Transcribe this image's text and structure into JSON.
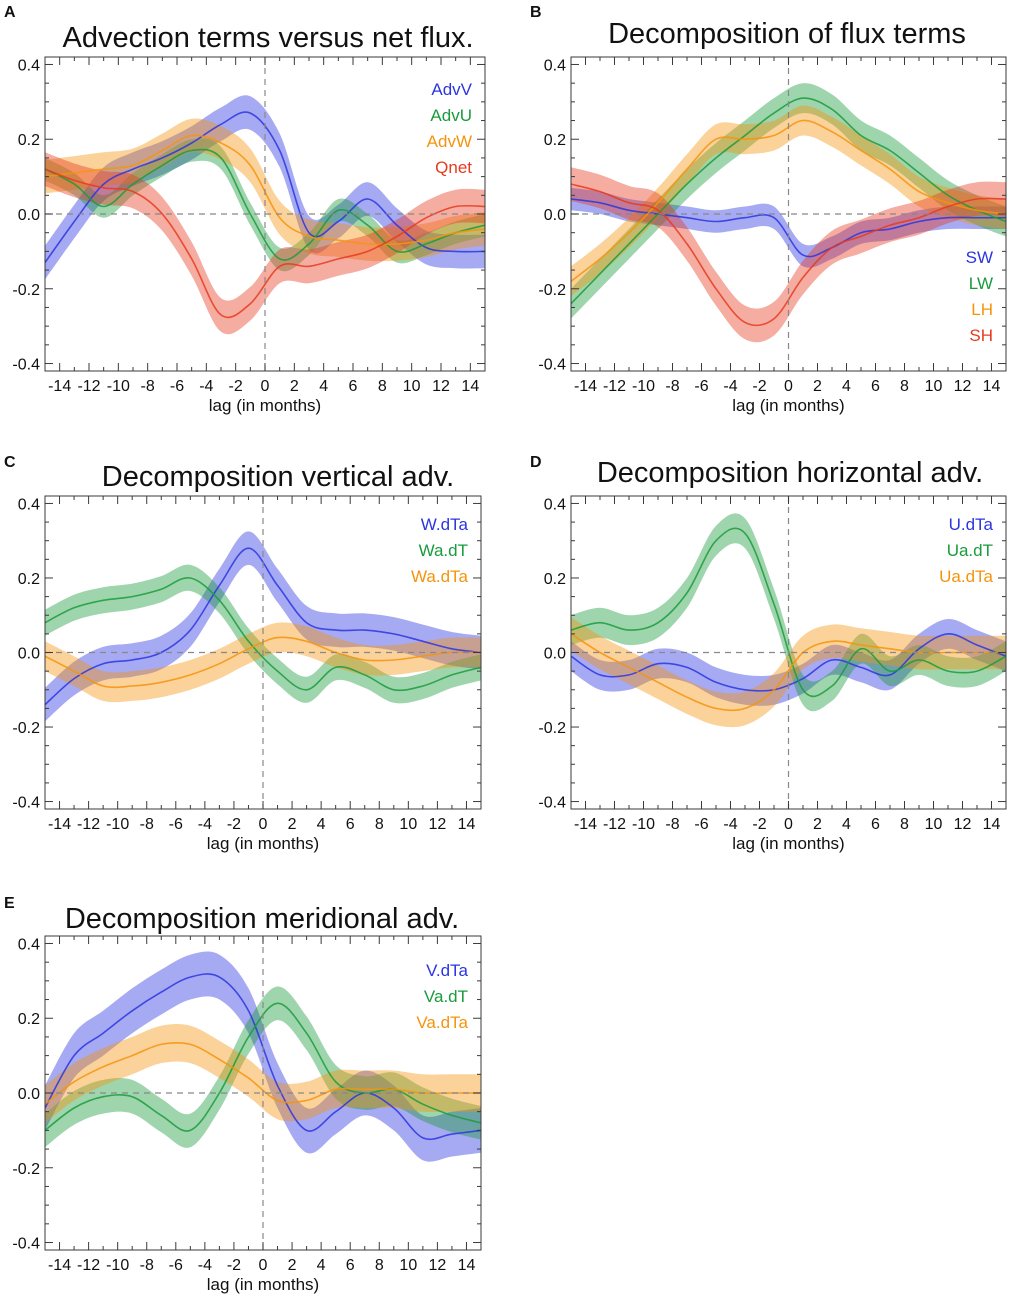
{
  "chart_data": [
    {
      "panel": "A",
      "type": "line",
      "title": "Advection terms versus net flux.",
      "xlabel": "lag (in months)",
      "ylabel": "",
      "xlim": [
        -15,
        15
      ],
      "ylim": [
        -0.42,
        0.42
      ],
      "x_ticks": [
        -14,
        -12,
        -10,
        -8,
        -6,
        -4,
        -2,
        0,
        2,
        4,
        6,
        8,
        10,
        12,
        14
      ],
      "x_tick_labels": [
        "-14",
        "-12",
        "-10",
        "-8",
        "-6",
        "-4",
        "-2",
        "0",
        "2",
        "4",
        "6",
        "8",
        "10",
        "12",
        "14"
      ],
      "y_ticks": [
        -0.4,
        -0.2,
        0.0,
        0.2,
        0.4
      ],
      "y_tick_labels": [
        "-0.4",
        "-0.2",
        "0.0",
        "0.2",
        "0.4"
      ],
      "legend_position": "top-right",
      "x": [
        -15,
        -13,
        -11,
        -9,
        -7,
        -5,
        -3,
        -1,
        1,
        3,
        5,
        7,
        9,
        11,
        13,
        15
      ],
      "series": [
        {
          "name": "AdvV",
          "color": "#2b35e0",
          "band": 0.045,
          "values": [
            -0.13,
            -0.02,
            0.08,
            0.12,
            0.15,
            0.19,
            0.24,
            0.27,
            0.17,
            -0.05,
            -0.02,
            0.04,
            -0.03,
            -0.09,
            -0.1,
            -0.1
          ]
        },
        {
          "name": "AdvU",
          "color": "#1a9b3c",
          "band": 0.03,
          "values": [
            0.12,
            0.08,
            0.02,
            0.08,
            0.13,
            0.17,
            0.15,
            0.0,
            -0.12,
            -0.08,
            0.01,
            -0.03,
            -0.1,
            -0.08,
            -0.05,
            -0.03
          ]
        },
        {
          "name": "AdvW",
          "color": "#f5940c",
          "band": 0.045,
          "values": [
            0.1,
            0.11,
            0.12,
            0.13,
            0.17,
            0.21,
            0.19,
            0.13,
            -0.01,
            -0.06,
            -0.07,
            -0.08,
            -0.08,
            -0.07,
            -0.05,
            -0.04
          ]
        },
        {
          "name": "Qnet",
          "color": "#e83a1e",
          "band": 0.045,
          "values": [
            0.12,
            0.09,
            0.07,
            0.06,
            0.0,
            -0.12,
            -0.27,
            -0.24,
            -0.14,
            -0.14,
            -0.12,
            -0.1,
            -0.06,
            -0.01,
            0.02,
            0.02
          ]
        }
      ]
    },
    {
      "panel": "B",
      "type": "line",
      "title": "Decomposition of flux terms",
      "xlabel": "lag (in months)",
      "ylabel": "",
      "xlim": [
        -15,
        15
      ],
      "ylim": [
        -0.42,
        0.42
      ],
      "x_ticks": [
        -14,
        -12,
        -10,
        -8,
        -6,
        -4,
        -2,
        0,
        2,
        4,
        6,
        8,
        10,
        12,
        14
      ],
      "x_tick_labels": [
        "-14",
        "-12",
        "-10",
        "-8",
        "-6",
        "-4",
        "-2",
        "0",
        "2",
        "4",
        "6",
        "8",
        "10",
        "12",
        "14"
      ],
      "y_ticks": [
        -0.4,
        -0.2,
        0.0,
        0.2,
        0.4
      ],
      "y_tick_labels": [
        "-0.4",
        "-0.2",
        "0.0",
        "0.2",
        "0.4"
      ],
      "legend_position": "bottom-right",
      "x": [
        -15,
        -13,
        -11,
        -9,
        -7,
        -5,
        -3,
        -1,
        1,
        3,
        5,
        7,
        9,
        11,
        13,
        15
      ],
      "series": [
        {
          "name": "SW",
          "color": "#2b35e0",
          "band": 0.03,
          "values": [
            0.04,
            0.03,
            0.01,
            0.0,
            -0.01,
            -0.02,
            -0.01,
            -0.01,
            -0.11,
            -0.09,
            -0.05,
            -0.04,
            -0.02,
            -0.01,
            -0.01,
            -0.01
          ]
        },
        {
          "name": "LW",
          "color": "#1a9b3c",
          "band": 0.04,
          "values": [
            -0.24,
            -0.16,
            -0.08,
            0.0,
            0.08,
            0.15,
            0.21,
            0.27,
            0.31,
            0.28,
            0.21,
            0.17,
            0.11,
            0.05,
            0.01,
            -0.02
          ]
        },
        {
          "name": "LH",
          "color": "#f5940c",
          "band": 0.04,
          "values": [
            -0.18,
            -0.12,
            -0.05,
            0.03,
            0.12,
            0.2,
            0.2,
            0.21,
            0.25,
            0.22,
            0.17,
            0.12,
            0.06,
            0.03,
            0.01,
            0.0
          ]
        },
        {
          "name": "SH",
          "color": "#e83a1e",
          "band": 0.045,
          "values": [
            0.08,
            0.06,
            0.03,
            0.01,
            -0.08,
            -0.2,
            -0.29,
            -0.28,
            -0.17,
            -0.09,
            -0.06,
            -0.03,
            -0.01,
            0.02,
            0.04,
            0.04
          ]
        }
      ]
    },
    {
      "panel": "C",
      "type": "line",
      "title": "Decomposition vertical adv.",
      "xlabel": "lag (in months)",
      "ylabel": "",
      "xlim": [
        -15,
        15
      ],
      "ylim": [
        -0.42,
        0.42
      ],
      "x_ticks": [
        -14,
        -12,
        -10,
        -8,
        -6,
        -4,
        -2,
        0,
        2,
        4,
        6,
        8,
        10,
        12,
        14
      ],
      "x_tick_labels": [
        "-14",
        "-12",
        "-10",
        "-8",
        "-6",
        "-4",
        "-2",
        "0",
        "2",
        "4",
        "6",
        "8",
        "10",
        "12",
        "14"
      ],
      "y_ticks": [
        -0.4,
        -0.2,
        0.0,
        0.2,
        0.4
      ],
      "y_tick_labels": [
        "-0.4",
        "-0.2",
        "0.0",
        "0.2",
        "0.4"
      ],
      "legend_position": "top-right",
      "x": [
        -15,
        -13,
        -11,
        -9,
        -7,
        -5,
        -3,
        -1,
        1,
        3,
        5,
        7,
        9,
        11,
        13,
        15
      ],
      "series": [
        {
          "name": "W.dTa",
          "color": "#2b35e0",
          "band": 0.045,
          "values": [
            -0.14,
            -0.07,
            -0.03,
            -0.02,
            0.0,
            0.06,
            0.18,
            0.28,
            0.18,
            0.08,
            0.06,
            0.06,
            0.05,
            0.03,
            0.01,
            0.0
          ]
        },
        {
          "name": "Wa.dT",
          "color": "#1a9b3c",
          "band": 0.035,
          "values": [
            0.08,
            0.12,
            0.14,
            0.15,
            0.17,
            0.2,
            0.14,
            0.03,
            -0.05,
            -0.1,
            -0.04,
            -0.06,
            -0.1,
            -0.09,
            -0.06,
            -0.04
          ]
        },
        {
          "name": "Wa.dTa",
          "color": "#f5940c",
          "band": 0.04,
          "values": [
            -0.01,
            -0.05,
            -0.09,
            -0.09,
            -0.08,
            -0.06,
            -0.03,
            0.01,
            0.04,
            0.03,
            0.0,
            -0.02,
            -0.02,
            -0.01,
            0.0,
            0.0
          ]
        }
      ]
    },
    {
      "panel": "D",
      "type": "line",
      "title": "Decomposition horizontal adv.",
      "xlabel": "lag (in months)",
      "ylabel": "",
      "xlim": [
        -15,
        15
      ],
      "ylim": [
        -0.42,
        0.42
      ],
      "x_ticks": [
        -14,
        -12,
        -10,
        -8,
        -6,
        -4,
        -2,
        0,
        2,
        4,
        6,
        8,
        10,
        12,
        14
      ],
      "x_tick_labels": [
        "-14",
        "-12",
        "-10",
        "-8",
        "-6",
        "-4",
        "-2",
        "0",
        "2",
        "4",
        "6",
        "8",
        "10",
        "12",
        "14"
      ],
      "y_ticks": [
        -0.4,
        -0.2,
        0.0,
        0.2,
        0.4
      ],
      "y_tick_labels": [
        "-0.4",
        "-0.2",
        "0.0",
        "0.2",
        "0.4"
      ],
      "legend_position": "top-right",
      "x": [
        -15,
        -13,
        -11,
        -9,
        -7,
        -5,
        -3,
        -1,
        1,
        3,
        5,
        7,
        9,
        11,
        13,
        15
      ],
      "series": [
        {
          "name": "U.dTa",
          "color": "#2b35e0",
          "band": 0.04,
          "values": [
            -0.01,
            -0.06,
            -0.06,
            -0.03,
            -0.04,
            -0.08,
            -0.1,
            -0.1,
            -0.07,
            -0.02,
            -0.04,
            -0.06,
            0.01,
            0.05,
            0.02,
            -0.01
          ]
        },
        {
          "name": "Ua.dT",
          "color": "#1a9b3c",
          "band": 0.04,
          "values": [
            0.06,
            0.08,
            0.06,
            0.08,
            0.16,
            0.3,
            0.32,
            0.13,
            -0.1,
            -0.09,
            0.01,
            -0.05,
            -0.02,
            -0.05,
            -0.05,
            -0.01
          ]
        },
        {
          "name": "Ua.dTa",
          "color": "#f5940c",
          "band": 0.045,
          "values": [
            0.05,
            0.0,
            -0.04,
            -0.08,
            -0.12,
            -0.15,
            -0.15,
            -0.1,
            0.0,
            0.03,
            0.02,
            0.01,
            0.0,
            0.0,
            0.0,
            0.0
          ]
        }
      ]
    },
    {
      "panel": "E",
      "type": "line",
      "title": "Decomposition meridional adv.",
      "xlabel": "lag (in months)",
      "ylabel": "",
      "xlim": [
        -15,
        15
      ],
      "ylim": [
        -0.42,
        0.42
      ],
      "x_ticks": [
        -14,
        -12,
        -10,
        -8,
        -6,
        -4,
        -2,
        0,
        2,
        4,
        6,
        8,
        10,
        12,
        14
      ],
      "x_tick_labels": [
        "-14",
        "-12",
        "-10",
        "-8",
        "-6",
        "-4",
        "-2",
        "0",
        "2",
        "4",
        "6",
        "8",
        "10",
        "12",
        "14"
      ],
      "y_ticks": [
        -0.4,
        -0.2,
        0.0,
        0.2,
        0.4
      ],
      "y_tick_labels": [
        "-0.4",
        "-0.2",
        "0.0",
        "0.2",
        "0.4"
      ],
      "legend_position": "top-right",
      "x": [
        -15,
        -13,
        -11,
        -9,
        -7,
        -5,
        -3,
        -1,
        1,
        3,
        5,
        7,
        9,
        11,
        13,
        15
      ],
      "series": [
        {
          "name": "V.dTa",
          "color": "#2b35e0",
          "band": 0.06,
          "values": [
            -0.04,
            0.1,
            0.16,
            0.22,
            0.27,
            0.31,
            0.31,
            0.22,
            0.02,
            -0.1,
            -0.05,
            0.0,
            -0.04,
            -0.12,
            -0.11,
            -0.1
          ]
        },
        {
          "name": "Va.dT",
          "color": "#1a9b3c",
          "band": 0.045,
          "values": [
            -0.1,
            -0.04,
            -0.01,
            -0.01,
            -0.06,
            -0.1,
            0.0,
            0.15,
            0.24,
            0.16,
            0.03,
            0.0,
            0.01,
            -0.03,
            -0.06,
            -0.08
          ]
        },
        {
          "name": "Va.dTa",
          "color": "#f5940c",
          "band": 0.05,
          "values": [
            -0.03,
            0.03,
            0.07,
            0.1,
            0.13,
            0.13,
            0.09,
            0.04,
            -0.02,
            -0.02,
            0.01,
            0.01,
            0.01,
            0.0,
            0.0,
            0.0
          ]
        }
      ]
    }
  ]
}
